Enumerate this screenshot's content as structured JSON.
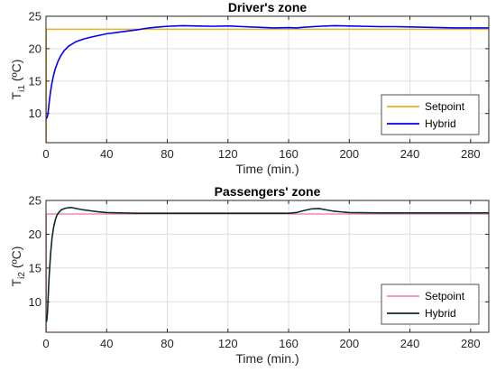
{
  "chart_data": [
    {
      "type": "line",
      "title": "Driver's zone",
      "xlabel": "Time (min.)",
      "ylabel_main": "T",
      "ylabel_sub": "i1",
      "ylabel_unit": "(ºC)",
      "xlim": [
        0,
        292
      ],
      "ylim": [
        5.5,
        25
      ],
      "xticks": [
        0,
        40,
        80,
        120,
        160,
        200,
        240,
        280
      ],
      "yticks": [
        10,
        15,
        20,
        25
      ],
      "grid": true,
      "legend_position": "bottom-right",
      "series": [
        {
          "name": "Setpoint",
          "color": "#EDB120",
          "x": [
            0,
            0.2,
            0.21,
            292
          ],
          "y": [
            5.5,
            5.5,
            23,
            23
          ]
        },
        {
          "name": "Hybrid",
          "color": "#0000FF",
          "x": [
            0,
            0.5,
            1,
            1.5,
            2,
            3,
            4,
            5,
            6,
            8,
            10,
            12,
            15,
            20,
            25,
            30,
            40,
            50,
            60,
            65,
            70,
            75,
            80,
            90,
            100,
            110,
            120,
            130,
            140,
            150,
            160,
            165,
            170,
            180,
            190,
            200,
            210,
            220,
            230,
            240,
            250,
            260,
            270,
            280,
            292
          ],
          "y": [
            9.2,
            9.3,
            9.6,
            10.3,
            11.5,
            13.4,
            14.8,
            15.9,
            16.8,
            18.1,
            19.0,
            19.7,
            20.4,
            21.1,
            21.5,
            21.8,
            22.3,
            22.6,
            22.9,
            23.1,
            23.25,
            23.35,
            23.45,
            23.55,
            23.5,
            23.45,
            23.5,
            23.4,
            23.3,
            23.2,
            23.25,
            23.2,
            23.3,
            23.45,
            23.55,
            23.5,
            23.45,
            23.4,
            23.4,
            23.35,
            23.3,
            23.25,
            23.2,
            23.2,
            23.2
          ]
        }
      ]
    },
    {
      "type": "line",
      "title": "Passengers' zone",
      "xlabel": "Time (min.)",
      "ylabel_main": "T",
      "ylabel_sub": "i2",
      "ylabel_unit": "(ºC)",
      "xlim": [
        0,
        292
      ],
      "ylim": [
        5.5,
        25
      ],
      "xticks": [
        0,
        40,
        80,
        120,
        160,
        200,
        240,
        280
      ],
      "yticks": [
        10,
        15,
        20,
        25
      ],
      "grid": true,
      "legend_position": "bottom-right",
      "series": [
        {
          "name": "Setpoint",
          "color": "#F08CB4",
          "x": [
            0,
            0.2,
            0.21,
            292
          ],
          "y": [
            5.5,
            5.5,
            23,
            23
          ]
        },
        {
          "name": "Hybrid",
          "color": "#0B2A2E",
          "x": [
            0,
            0.5,
            1,
            1.5,
            2,
            3,
            4,
            5,
            6,
            7,
            8,
            10,
            12,
            14,
            16,
            18,
            20,
            25,
            30,
            35,
            40,
            50,
            60,
            80,
            100,
            120,
            140,
            160,
            165,
            170,
            175,
            180,
            185,
            190,
            200,
            220,
            240,
            260,
            280,
            292
          ],
          "y": [
            7.0,
            7.2,
            8.5,
            11.0,
            13.5,
            17.0,
            19.5,
            21.0,
            22.0,
            22.7,
            23.1,
            23.6,
            23.8,
            23.9,
            23.95,
            23.9,
            23.8,
            23.6,
            23.45,
            23.3,
            23.2,
            23.15,
            23.1,
            23.1,
            23.1,
            23.1,
            23.1,
            23.1,
            23.2,
            23.5,
            23.75,
            23.8,
            23.6,
            23.4,
            23.2,
            23.15,
            23.15,
            23.15,
            23.15,
            23.15
          ]
        }
      ]
    }
  ]
}
